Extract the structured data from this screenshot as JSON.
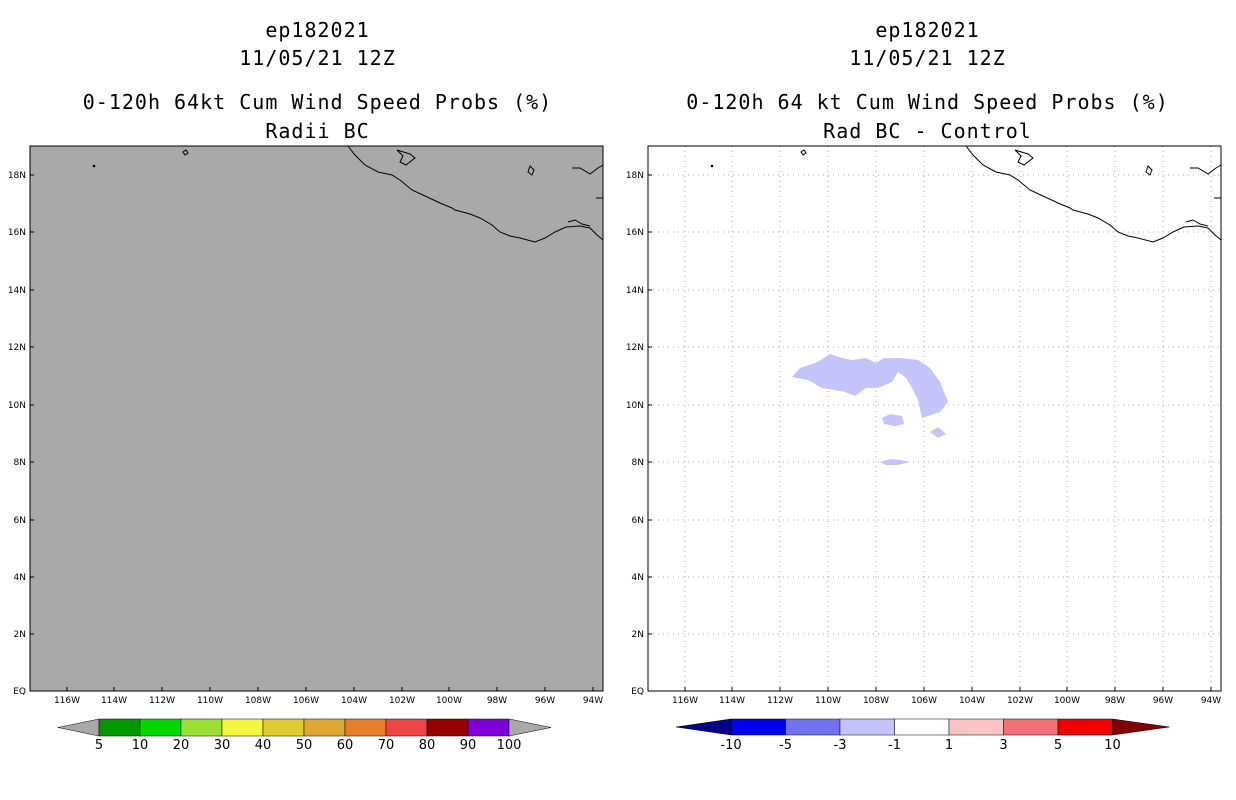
{
  "left_panel": {
    "title_line1": "ep182021",
    "title_line2": "11/05/21 12Z",
    "title_line3": "0-120h 64kt Cum Wind Speed Probs (%)",
    "title_line4": "Radii BC",
    "background_color": "#a9a9a9",
    "lat_labels": [
      "18N",
      "16N",
      "14N",
      "12N",
      "10N",
      "8N",
      "6N",
      "4N",
      "2N",
      "EQ"
    ],
    "lon_labels": [
      "116W",
      "114W",
      "112W",
      "110W",
      "108W",
      "106W",
      "104W",
      "102W",
      "100W",
      "98W",
      "96W",
      "94W"
    ],
    "colorbar": {
      "colors": [
        "#009900",
        "#00d900",
        "#99e033",
        "#f5f53d",
        "#e0cc30",
        "#e0a830",
        "#e87d2a",
        "#f04545",
        "#990000",
        "#7f00d9"
      ],
      "labels": [
        "5",
        "10",
        "20",
        "30",
        "40",
        "50",
        "60",
        "70",
        "80",
        "90",
        "100"
      ]
    }
  },
  "right_panel": {
    "title_line1": "ep182021",
    "title_line2": "11/05/21 12Z",
    "title_line3": "0-120h 64 kt Cum Wind Speed Probs (%)",
    "title_line4": "Rad BC - Control",
    "background_color": "#ffffff",
    "lat_labels": [
      "18N",
      "16N",
      "14N",
      "12N",
      "10N",
      "8N",
      "6N",
      "4N",
      "2N",
      "EQ"
    ],
    "lon_labels": [
      "116W",
      "114W",
      "112W",
      "110W",
      "108W",
      "106W",
      "104W",
      "102W",
      "100W",
      "98W",
      "96W",
      "94W"
    ],
    "shaded_region_color": "#c4c4fa",
    "colorbar": {
      "colors": [
        "#00008b",
        "#0000f0",
        "#7272f0",
        "#c4c4fa",
        "#ffffff",
        "#fac4c4",
        "#f07272",
        "#f00000",
        "#800000"
      ],
      "labels": [
        "-10",
        "-5",
        "-3",
        "-1",
        "1",
        "3",
        "5",
        "10"
      ]
    }
  }
}
